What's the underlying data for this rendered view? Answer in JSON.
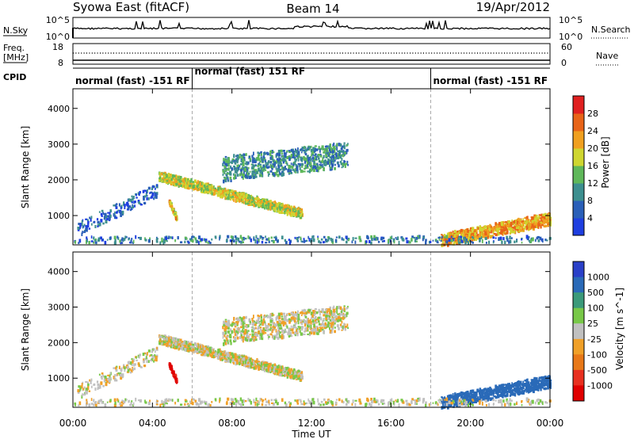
{
  "header": {
    "title": "Syowa East (fitACF)",
    "beam": "Beam 14",
    "date": "19/Apr/2012"
  },
  "noise_panel": {
    "left_label": "N.Sky",
    "right_label": "N.Search",
    "tick_top": "10^5",
    "tick_bottom": "10^0"
  },
  "freq_panel": {
    "left_label_1": "Freq.",
    "left_label_2": "[MHz]",
    "right_label": "Nave",
    "left_ticks": [
      "18",
      "8"
    ],
    "right_ticks": [
      "60",
      "0"
    ]
  },
  "cpid": {
    "label": "CPID",
    "segments": [
      {
        "text": "normal (fast) -151 RF",
        "start_hour": 0,
        "end_hour": 6
      },
      {
        "text": "normal (fast) 151 RF",
        "start_hour": 6,
        "end_hour": 18
      },
      {
        "text": "normal (fast) -151 RF",
        "start_hour": 18,
        "end_hour": 24
      }
    ]
  },
  "x_axis": {
    "label": "Time UT",
    "ticks": [
      "00:00",
      "04:00",
      "08:00",
      "12:00",
      "16:00",
      "20:00",
      "00:00"
    ],
    "range_hours": [
      0,
      24
    ]
  },
  "y_axis": {
    "label": "Slant Range [km]",
    "ticks": [
      "1000",
      "2000",
      "3000",
      "4000"
    ],
    "tick_values": [
      1000,
      2000,
      3000,
      4000
    ],
    "range_km": [
      180,
      4550
    ]
  },
  "power_scale": {
    "label": "Power [dB]",
    "ticks": [
      "4",
      "8",
      "12",
      "16",
      "20",
      "24",
      "28"
    ],
    "colors": [
      "#1f3fe0",
      "#2a5fb8",
      "#3d8f8f",
      "#5fb85a",
      "#cfd630",
      "#f0a020",
      "#e86418",
      "#e02020"
    ]
  },
  "velocity_scale": {
    "label": "Velocity [m s^-1]",
    "ticks": [
      "1000",
      "500",
      "100",
      "25",
      "-25",
      "-100",
      "-500",
      "-1000"
    ],
    "colors": [
      "#2a40c8",
      "#2a6ab8",
      "#3b9a7a",
      "#78c848",
      "#c0c0c0",
      "#f0a028",
      "#e87818",
      "#e83020",
      "#e00000"
    ]
  },
  "chart_data": {
    "type": "heatmap",
    "x_unit": "hours UT",
    "y_unit": "km",
    "power_features": [
      {
        "name": "arc_main",
        "t_start": 4.3,
        "t_end": 11.5,
        "r_start": 2100,
        "r_end": 1050,
        "power_db": 18
      },
      {
        "name": "arc_upper",
        "t_start": 7.5,
        "t_end": 13.8,
        "r_start": 2300,
        "r_end": 2700,
        "power_db": 10
      },
      {
        "name": "late_evening",
        "t_start": 18.5,
        "t_end": 24,
        "r_start": 300,
        "r_end": 900,
        "power_db": 22
      },
      {
        "name": "early_low",
        "t_start": 0.2,
        "t_end": 4.2,
        "r_start": 600,
        "r_end": 1700,
        "power_db": 6
      }
    ],
    "velocity_features": [
      {
        "name": "arc_main",
        "t_start": 4.3,
        "t_end": 11.5,
        "velocity_ms": 0
      },
      {
        "name": "late_evening",
        "t_start": 18.5,
        "t_end": 24,
        "velocity_ms": 500
      },
      {
        "name": "red_strip",
        "t_start": 4.8,
        "t_end": 5.2,
        "velocity_ms": -800
      }
    ]
  }
}
